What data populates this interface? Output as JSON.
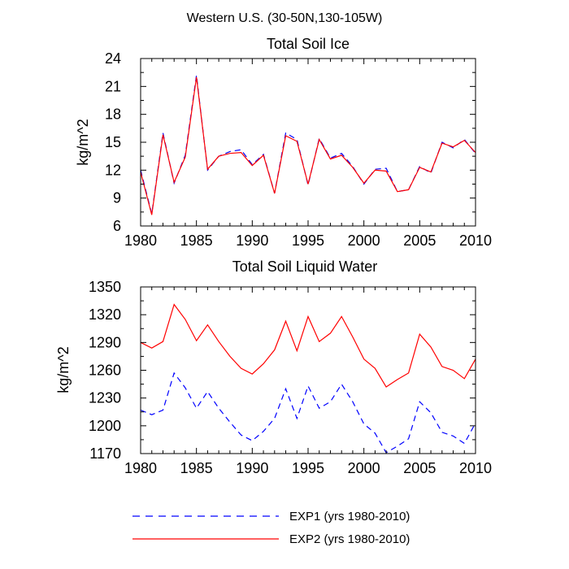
{
  "figure_title": "Western U.S. (30-50N,130-105W)",
  "legend": [
    {
      "label": "EXP1 (yrs 1980-2010)",
      "color": "#0000ff",
      "style": "dashed"
    },
    {
      "label": "EXP2 (yrs 1980-2010)",
      "color": "#ff0000",
      "style": "solid"
    }
  ],
  "chart_data": [
    {
      "type": "line",
      "title": "Total Soil Ice",
      "xlabel": "",
      "ylabel": "kg/m^2",
      "xlim": [
        1980,
        2010
      ],
      "ylim": [
        6,
        24
      ],
      "xticks": [
        1980,
        1985,
        1990,
        1995,
        2000,
        2005,
        2010
      ],
      "yticks": [
        6,
        9,
        12,
        15,
        18,
        21,
        24
      ],
      "grid": false,
      "x": [
        1980,
        1981,
        1982,
        1983,
        1984,
        1985,
        1986,
        1987,
        1988,
        1989,
        1990,
        1991,
        1992,
        1993,
        1994,
        1995,
        1996,
        1997,
        1998,
        1999,
        2000,
        2001,
        2002,
        2003,
        2004,
        2005,
        2006,
        2007,
        2008,
        2009,
        2010
      ],
      "series": [
        {
          "name": "EXP1",
          "color": "#0000ff",
          "dash": "dashed",
          "values": [
            12.0,
            7.3,
            16.0,
            10.6,
            13.6,
            22.2,
            12.0,
            13.5,
            14.0,
            14.2,
            12.6,
            13.7,
            9.5,
            16.0,
            15.3,
            10.4,
            15.4,
            13.3,
            13.8,
            12.4,
            10.5,
            12.1,
            12.2,
            9.7,
            9.9,
            12.4,
            11.7,
            15.0,
            14.4,
            15.3,
            13.8
          ]
        },
        {
          "name": "EXP2",
          "color": "#ff0000",
          "dash": "solid",
          "values": [
            11.8,
            7.2,
            15.8,
            10.7,
            13.4,
            22.0,
            12.1,
            13.5,
            13.8,
            13.9,
            12.5,
            13.6,
            9.5,
            15.7,
            15.1,
            10.5,
            15.3,
            13.2,
            13.6,
            12.3,
            10.6,
            12.0,
            11.9,
            9.7,
            9.9,
            12.3,
            11.8,
            14.9,
            14.5,
            15.2,
            13.9
          ]
        }
      ]
    },
    {
      "type": "line",
      "title": "Total Soil Liquid Water",
      "xlabel": "",
      "ylabel": "kg/m^2",
      "xlim": [
        1980,
        2010
      ],
      "ylim": [
        1170,
        1350
      ],
      "xticks": [
        1980,
        1985,
        1990,
        1995,
        2000,
        2005,
        2010
      ],
      "yticks": [
        1170,
        1200,
        1230,
        1260,
        1290,
        1320,
        1350
      ],
      "grid": false,
      "x": [
        1980,
        1981,
        1982,
        1983,
        1984,
        1985,
        1986,
        1987,
        1988,
        1989,
        1990,
        1991,
        1992,
        1993,
        1994,
        1995,
        1996,
        1997,
        1998,
        1999,
        2000,
        2001,
        2002,
        2003,
        2004,
        2005,
        2006,
        2007,
        2008,
        2009,
        2010
      ],
      "series": [
        {
          "name": "EXP1",
          "color": "#0000ff",
          "dash": "dashed",
          "values": [
            1217,
            1212,
            1217,
            1257,
            1241,
            1219,
            1237,
            1219,
            1204,
            1190,
            1184,
            1194,
            1208,
            1240,
            1208,
            1243,
            1219,
            1226,
            1245,
            1226,
            1202,
            1192,
            1171,
            1178,
            1186,
            1226,
            1214,
            1193,
            1189,
            1181,
            1203
          ]
        },
        {
          "name": "EXP2",
          "color": "#ff0000",
          "dash": "solid",
          "values": [
            1290,
            1284,
            1291,
            1331,
            1315,
            1292,
            1309,
            1291,
            1275,
            1262,
            1256,
            1267,
            1282,
            1313,
            1281,
            1318,
            1291,
            1300,
            1318,
            1296,
            1272,
            1262,
            1242,
            1250,
            1257,
            1299,
            1285,
            1264,
            1260,
            1251,
            1272
          ]
        }
      ]
    }
  ]
}
